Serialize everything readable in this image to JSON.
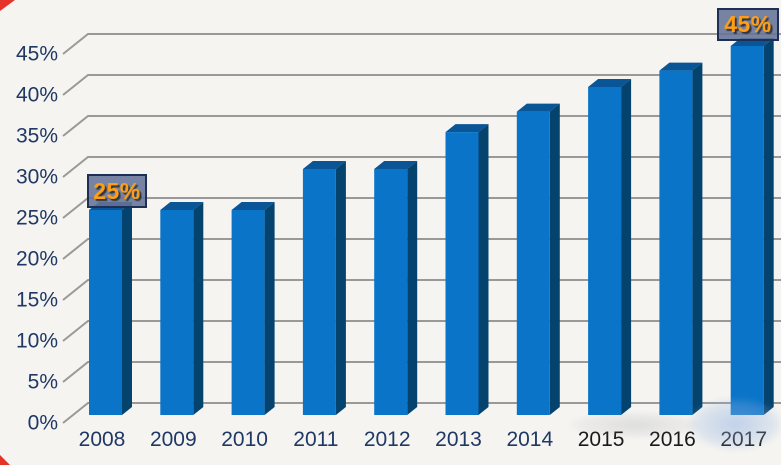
{
  "chart_data": {
    "type": "bar",
    "style": "3d-column",
    "title": "",
    "categories": [
      "2008",
      "2009",
      "2010",
      "2011",
      "2012",
      "2013",
      "2014",
      "2015",
      "2016",
      "2017"
    ],
    "values": [
      25,
      25,
      25,
      30,
      30,
      34.5,
      37,
      40,
      42,
      45
    ],
    "unit": "%",
    "xlabel": "",
    "ylabel": "",
    "ylim": [
      0,
      45
    ],
    "ytick_step": 5,
    "ytick_labels": [
      "0%",
      "5%",
      "10%",
      "15%",
      "20%",
      "25%",
      "30%",
      "35%",
      "40%",
      "45%"
    ],
    "grid": true,
    "legend_position": "none",
    "annotations": [
      {
        "target": "2008",
        "label": "25%"
      },
      {
        "target": "2017",
        "label": "45%"
      }
    ],
    "colors": {
      "bar_front": "#0a75c8",
      "bar_side": "#05436f",
      "bar_top": "#0a5596",
      "background": "#f5f4f1",
      "gridline": "#999999",
      "axis_label": "#1f3864",
      "x_label_recent": "#1a1a1a",
      "callout_bg": "rgba(100,115,150,0.88)",
      "callout_border": "#1e2f55",
      "callout_text": "#ff9e16",
      "corner_mark": "#e63329"
    }
  }
}
